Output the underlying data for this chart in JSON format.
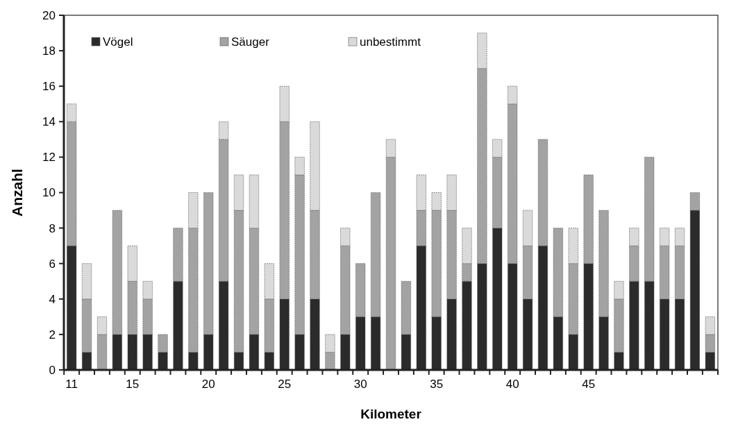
{
  "chart_data": {
    "type": "bar",
    "stacked": true,
    "xlabel": "Kilometer",
    "ylabel": "Anzahl",
    "categories": [
      "11",
      null,
      null,
      null,
      "15",
      null,
      null,
      null,
      null,
      "20",
      null,
      null,
      null,
      null,
      "25",
      null,
      null,
      null,
      null,
      "30",
      null,
      null,
      null,
      null,
      "35",
      null,
      null,
      null,
      null,
      "40",
      null,
      null,
      null,
      null,
      "45",
      null,
      null,
      null,
      null,
      null,
      null,
      null,
      null
    ],
    "ylim": [
      0,
      20
    ],
    "yticks": [
      0,
      2,
      4,
      6,
      8,
      10,
      12,
      14,
      16,
      18,
      20
    ],
    "grid": false,
    "legend": "top left",
    "series": [
      {
        "name": "Vögel",
        "color": "#2b2b2b",
        "values": [
          7,
          1,
          0,
          2,
          2,
          2,
          1,
          5,
          1,
          2,
          5,
          1,
          2,
          1,
          4,
          2,
          4,
          0,
          2,
          3,
          3,
          0,
          2,
          7,
          3,
          4,
          5,
          6,
          8,
          6,
          4,
          7,
          3,
          2,
          6,
          3,
          1,
          5,
          5,
          4,
          4,
          9,
          1
        ]
      },
      {
        "name": "Säuger",
        "color": "#a3a3a3",
        "values": [
          7,
          3,
          2,
          7,
          3,
          2,
          1,
          3,
          7,
          8,
          8,
          8,
          6,
          3,
          10,
          9,
          5,
          1,
          5,
          3,
          7,
          12,
          3,
          2,
          6,
          5,
          1,
          11,
          4,
          9,
          3,
          6,
          5,
          4,
          5,
          6,
          3,
          2,
          7,
          3,
          3,
          1,
          1
        ]
      },
      {
        "name": "unbestimmt",
        "color": "#dadada",
        "values": [
          1,
          2,
          1,
          0,
          2,
          1,
          0,
          0,
          2,
          0,
          1,
          2,
          3,
          2,
          2,
          1,
          5,
          1,
          1,
          0,
          0,
          1,
          0,
          2,
          1,
          2,
          2,
          2,
          1,
          1,
          2,
          0,
          0,
          2,
          0,
          0,
          1,
          1,
          0,
          1,
          1,
          0,
          1
        ]
      }
    ]
  }
}
